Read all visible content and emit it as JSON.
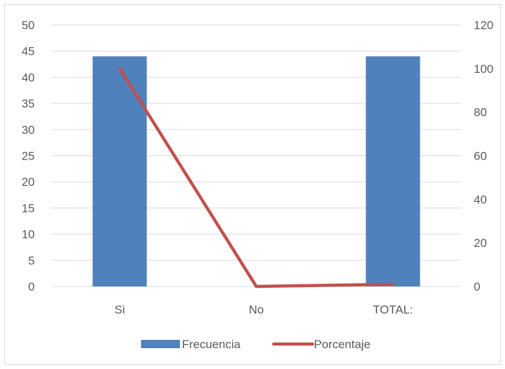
{
  "chart_data": {
    "type": "bar",
    "categories": [
      "Si",
      "No",
      "TOTAL:"
    ],
    "series": [
      {
        "name": "Frecuencia",
        "type": "bar",
        "axis": "left",
        "values": [
          44,
          0,
          44
        ],
        "color": "#4f81bd"
      },
      {
        "name": "Porcentaje",
        "type": "line",
        "axis": "right",
        "values": [
          100,
          0,
          1
        ],
        "color": "#c0504d"
      }
    ],
    "ylim_left": [
      0,
      50
    ],
    "yticks_left": [
      0,
      5,
      10,
      15,
      20,
      25,
      30,
      35,
      40,
      45,
      50
    ],
    "ylim_right": [
      0,
      120
    ],
    "yticks_right": [
      0,
      20,
      40,
      60,
      80,
      100,
      120
    ],
    "grid": true,
    "legend": "bottom"
  }
}
